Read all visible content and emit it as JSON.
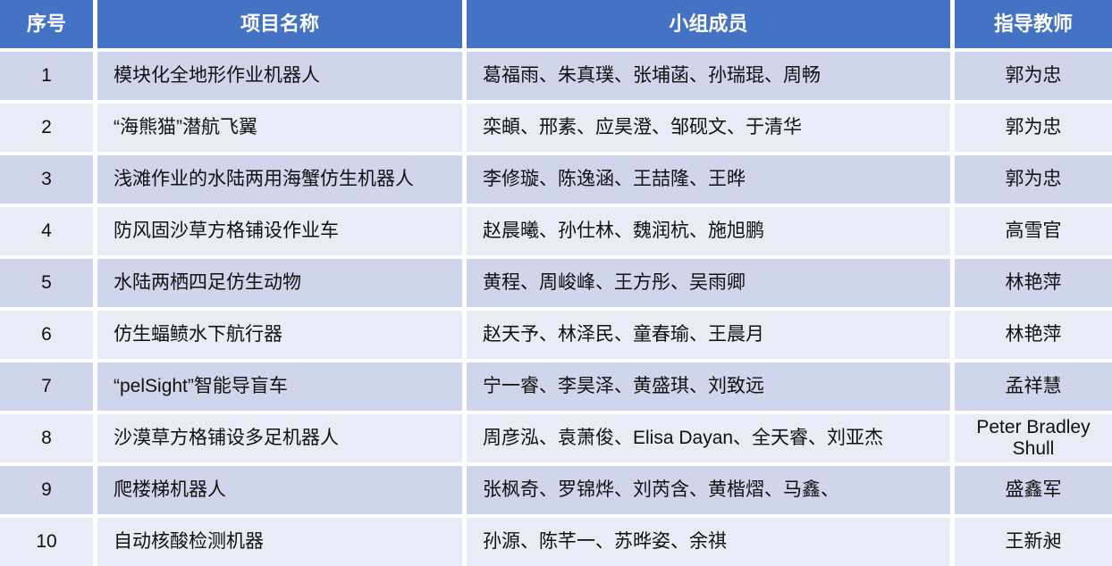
{
  "table": {
    "headers": {
      "no": "序号",
      "project": "项目名称",
      "members": "小组成员",
      "advisor": "指导教师"
    },
    "rows": [
      {
        "no": "1",
        "project": "模块化全地形作业机器人",
        "members": "葛福雨、朱真璞、张埔菡、孙瑞琨、周畅",
        "advisor": "郭为忠"
      },
      {
        "no": "2",
        "project": "“海熊猫”潜航飞翼",
        "members": "栾頔、邢素、应昊澄、邹砚文、于清华",
        "advisor": "郭为忠"
      },
      {
        "no": "3",
        "project": "浅滩作业的水陆两用海蟹仿生机器人",
        "members": "李修璇、陈逸涵、王喆隆、王晔",
        "advisor": "郭为忠"
      },
      {
        "no": "4",
        "project": "防风固沙草方格铺设作业车",
        "members": "赵晨曦、孙仕林、魏润杭、施旭鹏",
        "advisor": "高雪官"
      },
      {
        "no": "5",
        "project": "水陆两栖四足仿生动物",
        "members": "黄程、周峻峰、王方彤、吴雨卿",
        "advisor": "林艳萍"
      },
      {
        "no": "6",
        "project": "仿生蝠鲼水下航行器",
        "members": "赵天予、林泽民、童春瑜、王晨月",
        "advisor": "林艳萍"
      },
      {
        "no": "7",
        "project": "“pelSight”智能导盲车",
        "members": "宁一睿、李昊泽、黄盛琪、刘致远",
        "advisor": "孟祥慧"
      },
      {
        "no": "8",
        "project": "沙漠草方格铺设多足机器人",
        "members": "周彦泓、袁萧俊、Elisa Dayan、全天睿、刘亚杰",
        "advisor": "Peter Bradley Shull"
      },
      {
        "no": "9",
        "project": "爬楼梯机器人",
        "members": "张枫奇、罗锦烨、刘芮含、黄楷熠、马鑫、",
        "advisor": "盛鑫军"
      },
      {
        "no": "10",
        "project": "自动核酸检测机器",
        "members": "孙源、陈芊一、苏晔姿、余祺",
        "advisor": "王新昶"
      }
    ],
    "colors": {
      "header_bg": "#4472C4",
      "header_text": "#FFFFFF",
      "row_odd_bg": "#CFD5EA",
      "row_even_bg": "#E9EBF5",
      "body_text": "#111111",
      "separator": "#FFFFFF"
    }
  }
}
